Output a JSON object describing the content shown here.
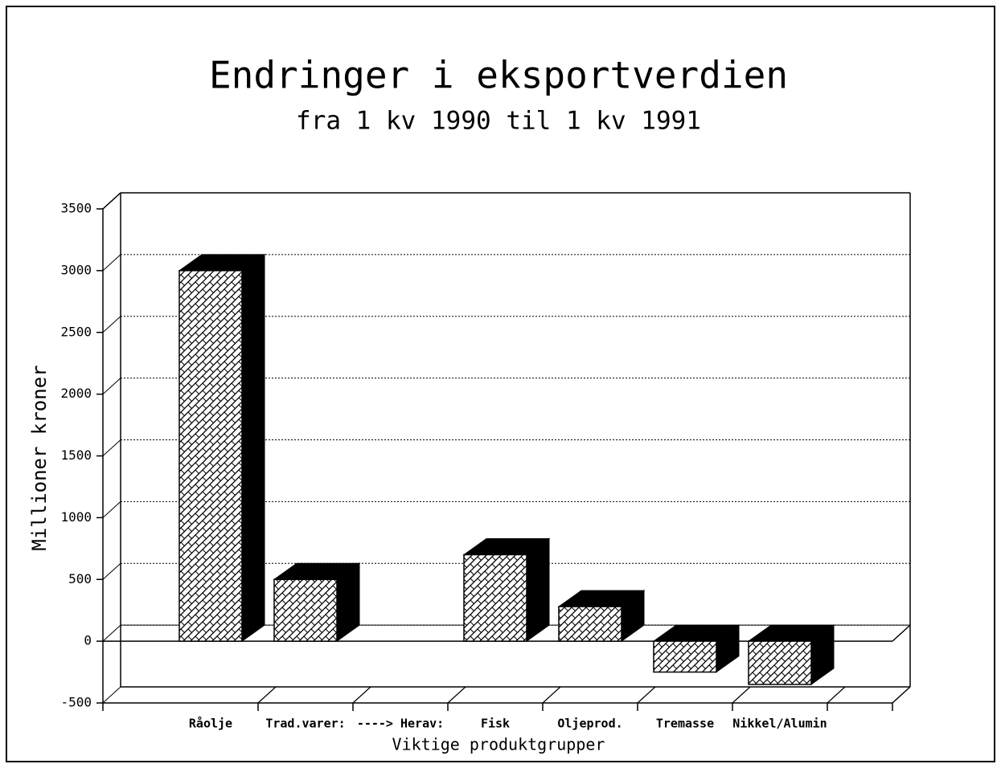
{
  "chart_data": {
    "type": "bar3d",
    "title": "Endringer i eksportverdien",
    "subtitle": "fra 1 kv 1990 til 1 kv 1991",
    "y_label": "Millioner kroner",
    "x_label": "Viktige produktgrupper",
    "categories": [
      "Råolje",
      "Trad.varer:",
      "----> Herav:",
      "Fisk",
      "Oljeprod.",
      "Tremasse",
      "Nikkel/Alumin"
    ],
    "values": [
      3000,
      500,
      null,
      700,
      280,
      -250,
      -350
    ],
    "color": "#000000",
    "ylim": [
      -500,
      3500
    ],
    "yticks": [
      -500,
      0,
      500,
      1000,
      1500,
      2000,
      2500,
      3000,
      3500
    ],
    "grid": true
  }
}
